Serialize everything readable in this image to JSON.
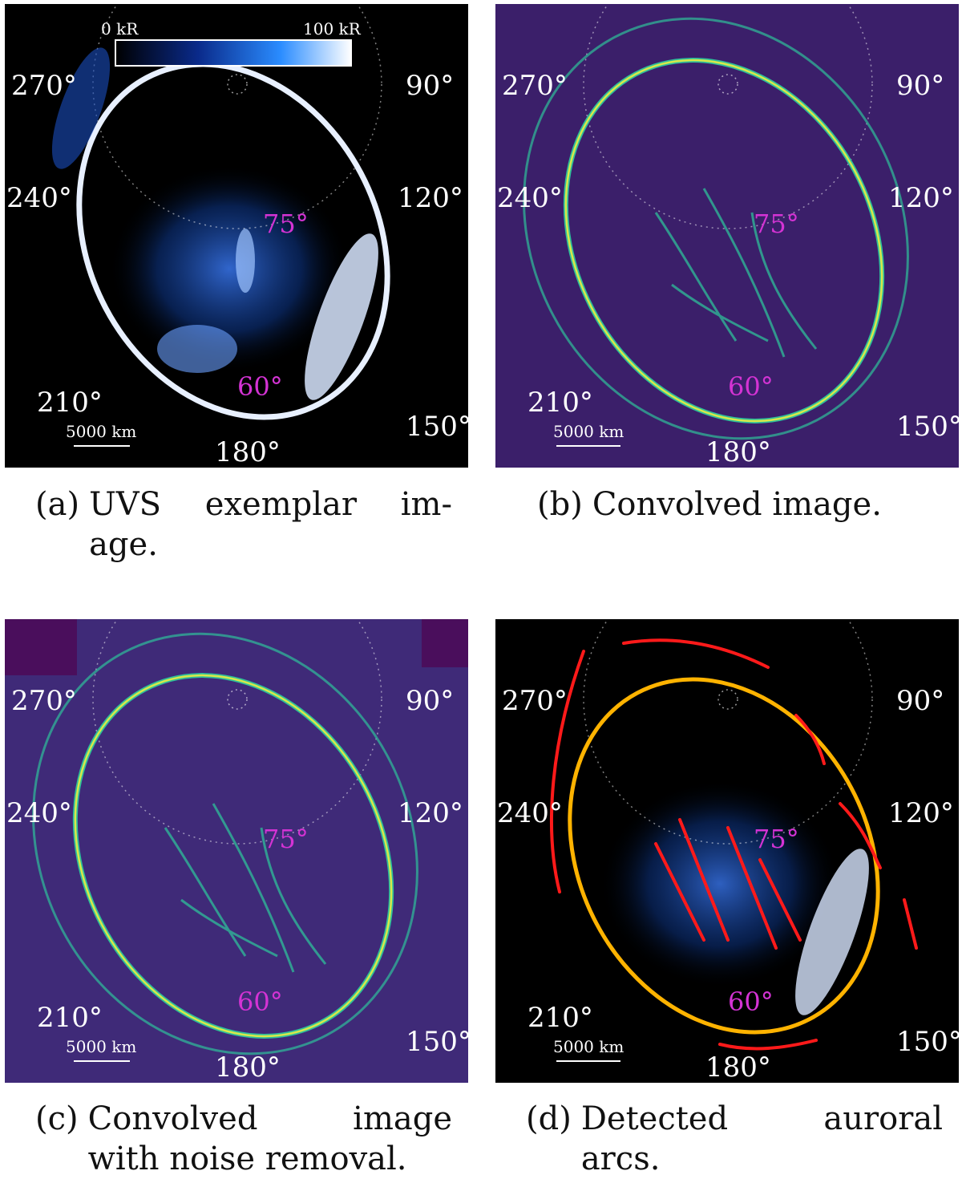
{
  "colorbar": {
    "min_label": "0 kR",
    "max_label": "100 kR"
  },
  "longitude_labels": [
    "270°",
    "90°",
    "240°",
    "120°",
    "210°",
    "150°",
    "180°"
  ],
  "latitude_labels": [
    "75°",
    "60°"
  ],
  "scale_bar": "5000 km",
  "panels": [
    {
      "id": "a",
      "letter": "(a)",
      "caption_line1": "UVS exemplar im-",
      "caption_line2": "age."
    },
    {
      "id": "b",
      "letter": "(b)",
      "caption_line1": "Convolved image.",
      "caption_line2": ""
    },
    {
      "id": "c",
      "letter": "(c)",
      "caption_line1": "Convolved image",
      "caption_line2": "with noise removal."
    },
    {
      "id": "d",
      "letter": "(d)",
      "caption_line1": "Detected auroral",
      "caption_line2": "arcs."
    }
  ],
  "colors": {
    "uvs_background": "#000000",
    "uvs_emission": "#1e6fff",
    "convolved_background": "#3b1f6a",
    "convolved_ridge": "#2fbf9a",
    "ridge_peak": "#d8e84a",
    "latitude_label": "#d433d4",
    "detected_main_arc": "#ffb300",
    "detected_other_arcs": "#ff1a1a"
  }
}
